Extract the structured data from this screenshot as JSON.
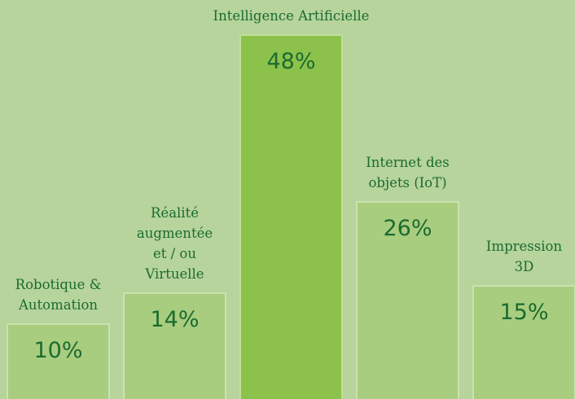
{
  "chart_data": {
    "type": "bar",
    "categories": [
      "Robotique & Automation",
      "Réalité augmentée et / ou Virtuelle",
      "Intelligence Artificielle",
      "Internet des objets (IoT)",
      "Impression 3D"
    ],
    "values": [
      10,
      14,
      48,
      26,
      15
    ],
    "value_labels": [
      "10%",
      "14%",
      "48%",
      "26%",
      "15%"
    ],
    "highlight": 2
  }
}
